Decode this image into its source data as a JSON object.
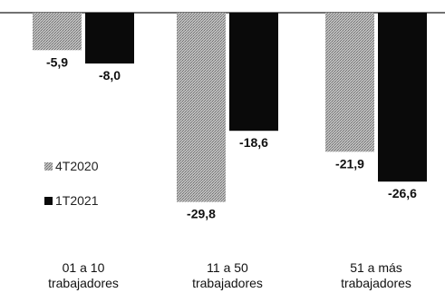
{
  "chart_data": {
    "type": "bar",
    "title": "",
    "xlabel": "",
    "ylabel": "",
    "categories": [
      [
        "01 a 10",
        "trabajadores"
      ],
      [
        "11 a 50",
        "trabajadores"
      ],
      [
        "51 a más",
        "trabajadores"
      ]
    ],
    "series": [
      {
        "name": "4T2020",
        "values": [
          -5.9,
          -29.8,
          -21.9
        ],
        "labels": [
          "-5,9",
          "-29,8",
          "-21,9"
        ],
        "color": "#a8a8a8",
        "pattern": "dotted-gray"
      },
      {
        "name": "1T2021",
        "values": [
          -8.0,
          -18.6,
          -26.6
        ],
        "labels": [
          "-8,0",
          "-18,6",
          "-26,6"
        ],
        "color": "#0a0a0a",
        "pattern": "solid"
      }
    ],
    "ylim": [
      -35,
      0
    ],
    "grid": false,
    "legend_position": "left"
  }
}
